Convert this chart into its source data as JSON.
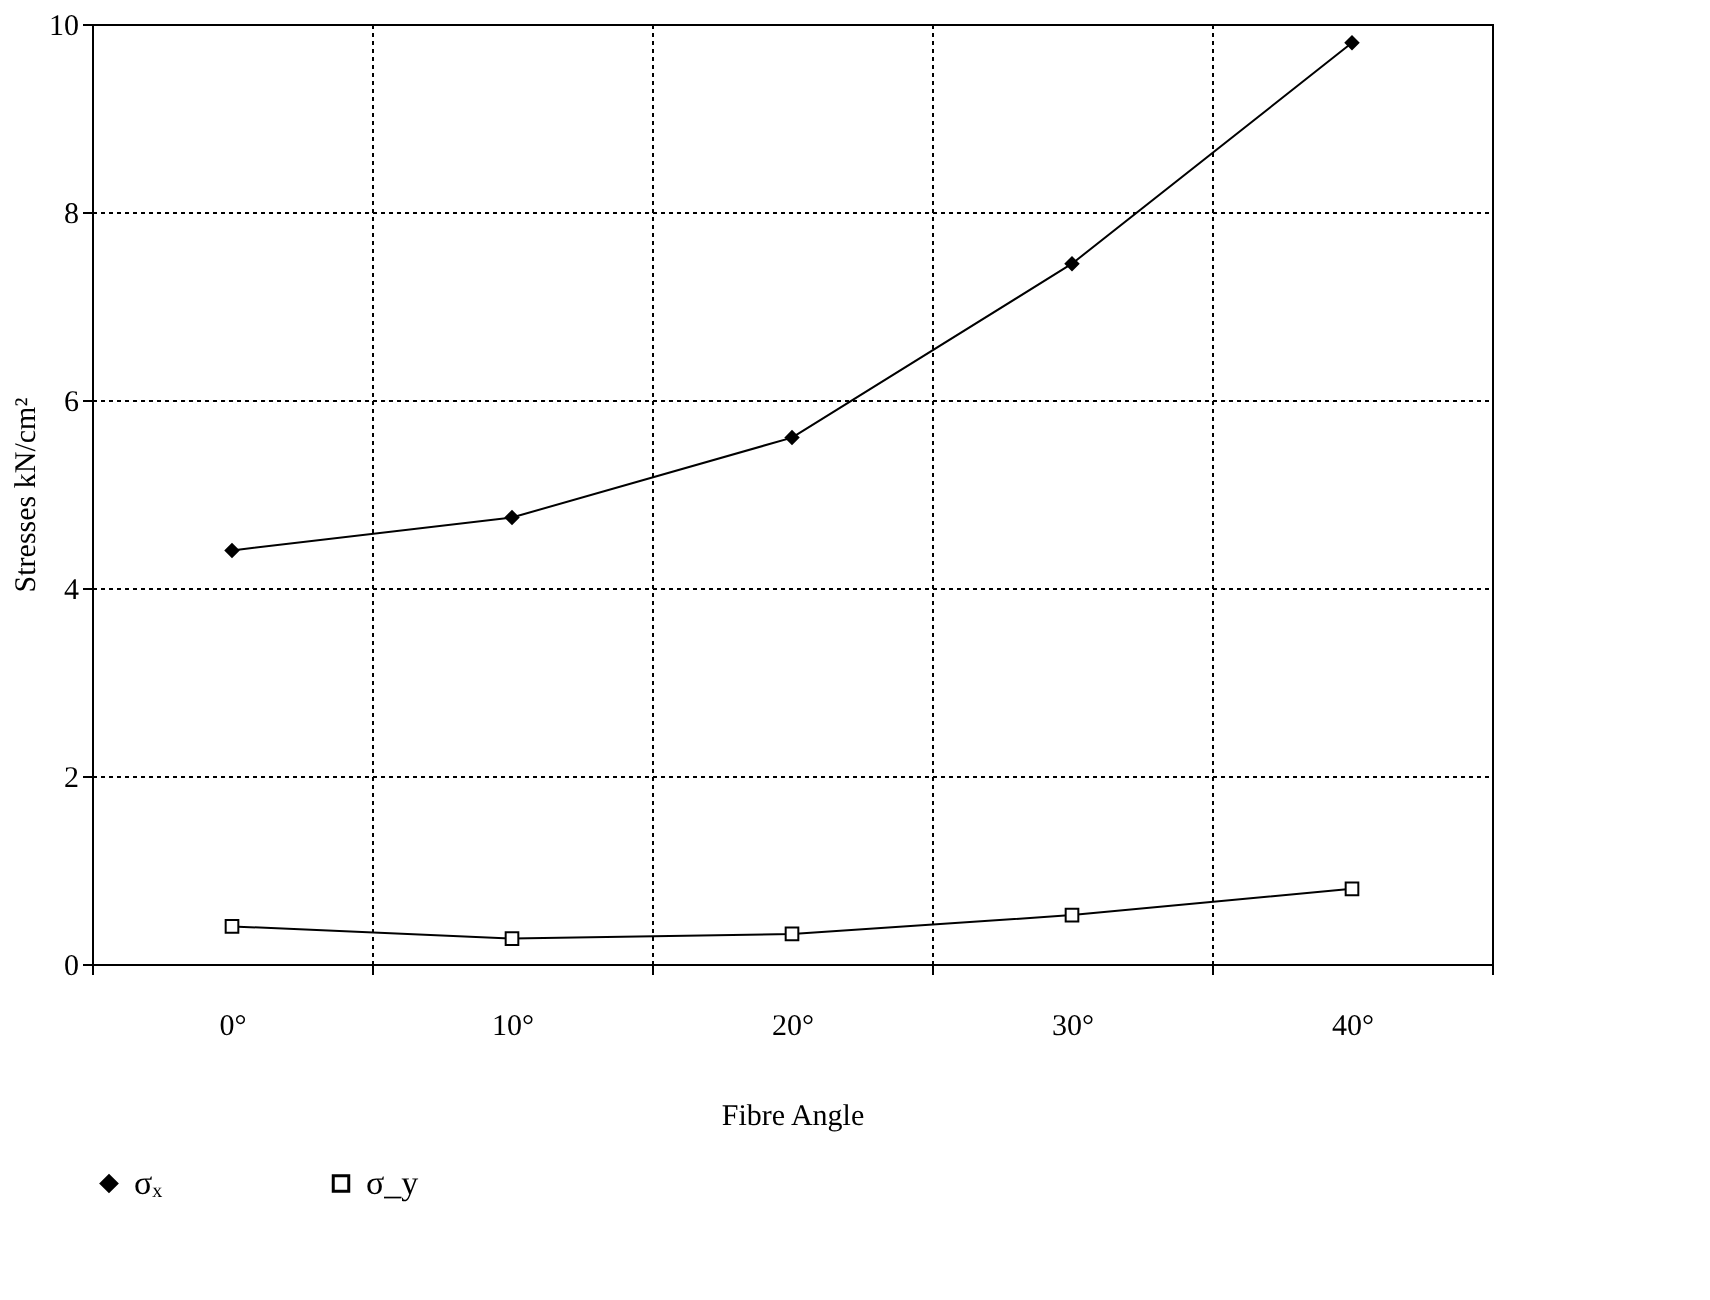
{
  "chart_data": {
    "type": "line",
    "xlabel": "Fibre Angle",
    "ylabel": "Stresses kN/cm²",
    "categories": [
      "0°",
      "10°",
      "20°",
      "30°",
      "40°"
    ],
    "series": [
      {
        "name": "σₓ",
        "color": "#000000",
        "marker": "diamond",
        "values": [
          4.4,
          4.75,
          5.6,
          7.45,
          9.8
        ]
      },
      {
        "name": "σ_y",
        "color": "#000000",
        "marker": "square",
        "values": [
          0.4,
          0.27,
          0.32,
          0.52,
          0.8
        ]
      }
    ],
    "ylim": [
      0,
      10
    ],
    "yticks": [
      0,
      2,
      4,
      6,
      8,
      10
    ],
    "grid": true,
    "legend": "bottom",
    "line_style": "solid"
  }
}
